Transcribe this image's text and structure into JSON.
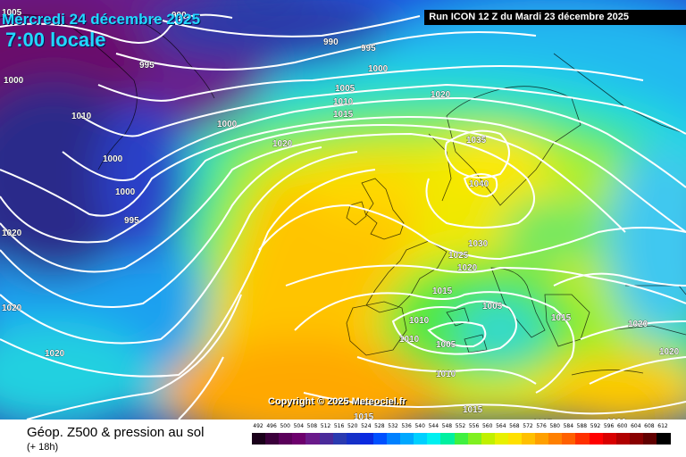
{
  "header": {
    "date": "Mercredi 24 décembre 2025",
    "local_time": "7:00 locale",
    "run": "Run ICON 12 Z du Mardi 23 décembre 2025"
  },
  "footer": {
    "title": "Géop. Z500 & pression au sol",
    "subtitle": "(+ 18h)",
    "copyright": "Copyright © 2025 Meteociel.fr"
  },
  "legend": {
    "values": [
      "492",
      "496",
      "500",
      "504",
      "508",
      "512",
      "516",
      "520",
      "524",
      "528",
      "532",
      "536",
      "540",
      "544",
      "548",
      "552",
      "556",
      "560",
      "564",
      "568",
      "572",
      "576",
      "580",
      "584",
      "588",
      "592",
      "596",
      "600",
      "604",
      "608",
      "612"
    ],
    "colors": [
      "#1a001a",
      "#3b003b",
      "#5a005a",
      "#6d006d",
      "#6a1a8a",
      "#4a2a9a",
      "#2a3ab0",
      "#1530c8",
      "#0a2ae0",
      "#0050ff",
      "#0080ff",
      "#00a8ff",
      "#00d0ff",
      "#00f0f0",
      "#00f0a0",
      "#40f040",
      "#80f020",
      "#c0f000",
      "#e8f000",
      "#ffe000",
      "#ffc000",
      "#ffa000",
      "#ff8000",
      "#ff6000",
      "#ff3000",
      "#ff0000",
      "#d80000",
      "#b00000",
      "#880000",
      "#600000",
      "#000000"
    ]
  },
  "isobar_labels": [
    {
      "text": "1005",
      "pos": [
        2,
        8
      ]
    },
    {
      "text": "990",
      "pos": [
        192,
        11
      ]
    },
    {
      "text": "1000",
      "pos": [
        4,
        84
      ]
    },
    {
      "text": "995",
      "pos": [
        156,
        67
      ]
    },
    {
      "text": "1010",
      "pos": [
        80,
        124
      ]
    },
    {
      "text": "990",
      "pos": [
        362,
        41
      ]
    },
    {
      "text": "995",
      "pos": [
        404,
        48
      ]
    },
    {
      "text": "1000",
      "pos": [
        412,
        71
      ]
    },
    {
      "text": "1005",
      "pos": [
        375,
        93
      ]
    },
    {
      "text": "1010",
      "pos": [
        373,
        108
      ]
    },
    {
      "text": "1015",
      "pos": [
        373,
        122
      ]
    },
    {
      "text": "1000",
      "pos": [
        243,
        133
      ]
    },
    {
      "text": "1020",
      "pos": [
        305,
        155
      ]
    },
    {
      "text": "1020",
      "pos": [
        482,
        100
      ]
    },
    {
      "text": "1000",
      "pos": [
        115,
        172
      ]
    },
    {
      "text": "1000",
      "pos": [
        129,
        209
      ]
    },
    {
      "text": "995",
      "pos": [
        139,
        241
      ]
    },
    {
      "text": "1035",
      "pos": [
        522,
        151
      ]
    },
    {
      "text": "1040",
      "pos": [
        525,
        200
      ]
    },
    {
      "text": "1020",
      "pos": [
        2,
        255
      ]
    },
    {
      "text": "1030",
      "pos": [
        524,
        267
      ]
    },
    {
      "text": "1025",
      "pos": [
        502,
        280
      ]
    },
    {
      "text": "1020",
      "pos": [
        512,
        294
      ]
    },
    {
      "text": "1015",
      "pos": [
        484,
        320
      ]
    },
    {
      "text": "1020",
      "pos": [
        2,
        339
      ]
    },
    {
      "text": "1005",
      "pos": [
        540,
        337
      ]
    },
    {
      "text": "1015",
      "pos": [
        617,
        350
      ]
    },
    {
      "text": "1010",
      "pos": [
        458,
        353
      ]
    },
    {
      "text": "1010",
      "pos": [
        447,
        374
      ]
    },
    {
      "text": "1020",
      "pos": [
        703,
        357
      ]
    },
    {
      "text": "1005",
      "pos": [
        488,
        380
      ]
    },
    {
      "text": "1020",
      "pos": [
        50,
        390
      ]
    },
    {
      "text": "1020",
      "pos": [
        738,
        388
      ]
    },
    {
      "text": "1010",
      "pos": [
        488,
        413
      ]
    },
    {
      "text": "1015",
      "pos": [
        518,
        453
      ]
    },
    {
      "text": "1015",
      "pos": [
        396,
        461
      ]
    },
    {
      "text": "1015",
      "pos": [
        596,
        468
      ]
    },
    {
      "text": "1020",
      "pos": [
        679,
        467
      ]
    }
  ]
}
